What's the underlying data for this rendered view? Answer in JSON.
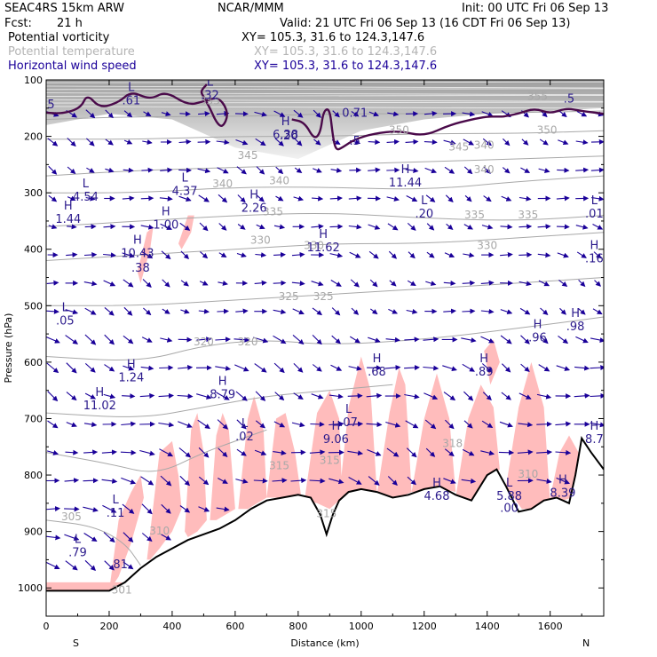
{
  "header": {
    "model": "SEAC4RS 15km ARW",
    "org": "NCAR/MMM",
    "init": "Init: 00 UTC Fri 06 Sep 13",
    "fcst_label": "Fcst:",
    "fcst_value": "21 h",
    "valid": "Valid: 21 UTC Fri 06 Sep 13 (16 CDT Fri 06 Sep 13)",
    "fields": [
      {
        "name": "Potential vorticity",
        "xy": "XY= 105.3, 31.6 to 124.3,147.6",
        "color": "#000000"
      },
      {
        "name": "Potential temperature",
        "xy": "XY= 105.3, 31.6 to 124.3,147.6",
        "color": "#b4b4b4"
      },
      {
        "name": "Horizontal wind speed",
        "xy": "XY= 105.3, 31.6 to 124.3,147.6",
        "color": "#1a0099"
      }
    ]
  },
  "chart_data": {
    "type": "cross-section",
    "xlabel": "Distance (km)",
    "ylabel": "Pressure (hPa)",
    "xlim": [
      0,
      1770
    ],
    "ylim": [
      1050,
      100
    ],
    "x_ticks": [
      "0",
      "200",
      "400",
      "600",
      "800",
      "1000",
      "1200",
      "1400",
      "1600"
    ],
    "y_ticks": [
      "100",
      "200",
      "300",
      "400",
      "500",
      "600",
      "700",
      "800",
      "900",
      "1000"
    ],
    "x_endpoints": {
      "left": "S",
      "right": "N"
    },
    "colors": {
      "pv_fill": "#ffbcbc",
      "pv_contour": "#4a0a4a",
      "theta": "#a8a8a8",
      "wind": "#1a0099",
      "terrain": "#000000"
    },
    "terrain": {
      "x": [
        0,
        200,
        250,
        300,
        350,
        400,
        450,
        500,
        550,
        600,
        650,
        700,
        750,
        800,
        840,
        870,
        890,
        910,
        930,
        960,
        1000,
        1050,
        1100,
        1150,
        1200,
        1250,
        1300,
        1350,
        1400,
        1430,
        1460,
        1500,
        1540,
        1580,
        1620,
        1660,
        1680,
        1700,
        1730,
        1770
      ],
      "p": [
        1005,
        1005,
        990,
        965,
        945,
        930,
        915,
        905,
        895,
        880,
        860,
        845,
        840,
        835,
        840,
        870,
        905,
        870,
        845,
        830,
        825,
        830,
        840,
        835,
        825,
        820,
        835,
        845,
        800,
        790,
        820,
        865,
        860,
        845,
        840,
        850,
        800,
        735,
        760,
        790
      ]
    },
    "theta_contours": [
      {
        "label": "305",
        "x": [
          0,
          150,
          250,
          300
        ],
        "p": [
          880,
          890,
          920,
          960
        ]
      },
      {
        "label": "310",
        "x": [
          0,
          200,
          350,
          500,
          600,
          700
        ],
        "p": [
          760,
          780,
          800,
          760,
          740,
          720
        ]
      },
      {
        "label": "315",
        "x": [
          0,
          300,
          500,
          700,
          900,
          1100
        ],
        "p": [
          690,
          700,
          680,
          660,
          650,
          640
        ]
      },
      {
        "label": "320",
        "x": [
          0,
          300,
          500,
          700,
          900,
          1200,
          1500,
          1770
        ],
        "p": [
          590,
          600,
          570,
          560,
          570,
          560,
          540,
          520
        ]
      },
      {
        "label": "325",
        "x": [
          0,
          300,
          600,
          900,
          1200,
          1500,
          1770
        ],
        "p": [
          500,
          500,
          490,
          480,
          470,
          460,
          450
        ]
      },
      {
        "label": "330",
        "x": [
          0,
          300,
          600,
          900,
          1200,
          1500,
          1770
        ],
        "p": [
          420,
          410,
          400,
          390,
          390,
          380,
          370
        ]
      },
      {
        "label": "335",
        "x": [
          0,
          300,
          600,
          900,
          1200,
          1500,
          1770
        ],
        "p": [
          360,
          350,
          340,
          335,
          345,
          350,
          340
        ]
      },
      {
        "label": "340",
        "x": [
          0,
          300,
          600,
          900,
          1200,
          1500,
          1770
        ],
        "p": [
          300,
          300,
          290,
          290,
          295,
          280,
          270
        ]
      },
      {
        "label": "345",
        "x": [
          0,
          300,
          600,
          900,
          1200,
          1500,
          1770
        ],
        "p": [
          270,
          260,
          255,
          250,
          245,
          240,
          235
        ]
      },
      {
        "label": "350",
        "x": [
          0,
          300,
          600,
          900,
          1200,
          1500,
          1770
        ],
        "p": [
          205,
          205,
          200,
          200,
          195,
          195,
          190
        ]
      },
      {
        "label": "355",
        "x": [
          0,
          300,
          600,
          900,
          1200,
          1500,
          1770
        ],
        "p": [
          170,
          165,
          165,
          160,
          160,
          158,
          155
        ]
      }
    ],
    "theta_labels": [
      {
        "text": "305",
        "x": 80,
        "p": 880
      },
      {
        "text": "310",
        "x": 360,
        "p": 905
      },
      {
        "text": "310",
        "x": 1530,
        "p": 805
      },
      {
        "text": "315",
        "x": 740,
        "p": 790
      },
      {
        "text": "315",
        "x": 900,
        "p": 780
      },
      {
        "text": "315",
        "x": 890,
        "p": 875
      },
      {
        "text": "318",
        "x": 1290,
        "p": 750
      },
      {
        "text": "301",
        "x": 240,
        "p": 1010
      },
      {
        "text": "320",
        "x": 500,
        "p": 570
      },
      {
        "text": "320",
        "x": 640,
        "p": 570
      },
      {
        "text": "325",
        "x": 770,
        "p": 490
      },
      {
        "text": "325",
        "x": 880,
        "p": 490
      },
      {
        "text": "330",
        "x": 680,
        "p": 390
      },
      {
        "text": "330",
        "x": 850,
        "p": 400
      },
      {
        "text": "330",
        "x": 1400,
        "p": 400
      },
      {
        "text": "335",
        "x": 720,
        "p": 340
      },
      {
        "text": "335",
        "x": 1360,
        "p": 345
      },
      {
        "text": "335",
        "x": 1530,
        "p": 345
      },
      {
        "text": "340",
        "x": 560,
        "p": 290
      },
      {
        "text": "340",
        "x": 740,
        "p": 285
      },
      {
        "text": "340",
        "x": 1390,
        "p": 265
      },
      {
        "text": "345",
        "x": 640,
        "p": 240
      },
      {
        "text": "345",
        "x": 1310,
        "p": 225
      },
      {
        "text": "350",
        "x": 1120,
        "p": 195
      },
      {
        "text": "350",
        "x": 1590,
        "p": 195
      },
      {
        "text": "355",
        "x": 520,
        "p": 143
      },
      {
        "text": "355",
        "x": 1560,
        "p": 135
      },
      {
        "text": "340",
        "x": 1390,
        "p": 222
      }
    ],
    "pv_fill_regions": [
      {
        "x": [
          0,
          240,
          240,
          0
        ],
        "p": [
          990,
          990,
          1005,
          1005
        ]
      },
      {
        "x": [
          200,
          230,
          270,
          300,
          310,
          270,
          230,
          200
        ],
        "p": [
          1005,
          880,
          830,
          800,
          840,
          920,
          980,
          1005
        ]
      },
      {
        "x": [
          320,
          360,
          400,
          420,
          430,
          400,
          360,
          330
        ],
        "p": [
          950,
          760,
          740,
          800,
          860,
          900,
          930,
          950
        ]
      },
      {
        "x": [
          440,
          460,
          480,
          500,
          510,
          480,
          450
        ],
        "p": [
          900,
          720,
          690,
          760,
          880,
          900,
          910
        ]
      },
      {
        "x": [
          520,
          540,
          560,
          580,
          600,
          570,
          540
        ],
        "p": [
          880,
          730,
          690,
          720,
          860,
          870,
          880
        ]
      },
      {
        "x": [
          610,
          640,
          660,
          690,
          700,
          670,
          640
        ],
        "p": [
          860,
          700,
          660,
          720,
          840,
          850,
          860
        ]
      },
      {
        "x": [
          700,
          730,
          760,
          790,
          810,
          780,
          740
        ],
        "p": [
          840,
          700,
          690,
          760,
          840,
          840,
          840
        ]
      },
      {
        "x": [
          820,
          860,
          900,
          930,
          940,
          900,
          860
        ],
        "p": [
          845,
          690,
          650,
          700,
          840,
          860,
          850
        ]
      },
      {
        "x": [
          930,
          960,
          1000,
          1030,
          1050,
          1010,
          960
        ],
        "p": [
          840,
          680,
          590,
          650,
          830,
          830,
          840
        ]
      },
      {
        "x": [
          1050,
          1090,
          1120,
          1140,
          1160,
          1120,
          1080
        ],
        "p": [
          835,
          690,
          610,
          640,
          830,
          840,
          840
        ]
      },
      {
        "x": [
          1160,
          1200,
          1240,
          1280,
          1300,
          1260,
          1200
        ],
        "p": [
          830,
          700,
          620,
          700,
          830,
          825,
          830
        ]
      },
      {
        "x": [
          1300,
          1340,
          1380,
          1420,
          1440,
          1410,
          1350
        ],
        "p": [
          840,
          700,
          640,
          680,
          790,
          800,
          845
        ]
      },
      {
        "x": [
          1460,
          1500,
          1540,
          1580,
          1600,
          1570,
          1510
        ],
        "p": [
          820,
          680,
          600,
          680,
          850,
          860,
          860
        ]
      },
      {
        "x": [
          1600,
          1630,
          1660,
          1690,
          1700,
          1670,
          1640
        ],
        "p": [
          840,
          760,
          730,
          760,
          800,
          840,
          845
        ]
      },
      {
        "x": [
          1390,
          1420,
          1440,
          1410
        ],
        "p": [
          580,
          560,
          600,
          640
        ]
      },
      {
        "x": [
          290,
          320,
          340,
          330,
          300
        ],
        "p": [
          440,
          370,
          360,
          400,
          460
        ]
      },
      {
        "x": [
          420,
          450,
          470,
          460,
          430
        ],
        "p": [
          390,
          340,
          340,
          370,
          400
        ]
      }
    ],
    "pv_contour_lines": [
      {
        "x": [
          0,
          50,
          110,
          130,
          170,
          230,
          270,
          330,
          380,
          450,
          500,
          550,
          580,
          560,
          540,
          520,
          500,
          490,
          510
        ],
        "p": [
          158,
          160,
          150,
          125,
          150,
          140,
          120,
          135,
          120,
          145,
          138,
          130,
          160,
          185,
          175,
          150,
          130,
          120,
          108
        ]
      },
      {
        "x": [
          780,
          820,
          850,
          870,
          880,
          900,
          910,
          920,
          940,
          980,
          1040,
          1120,
          1200,
          1280,
          1350,
          1400,
          1430,
          1450
        ],
        "p": [
          170,
          175,
          205,
          195,
          155,
          150,
          200,
          225,
          220,
          205,
          195,
          190,
          200,
          180,
          170,
          165,
          165,
          165
        ]
      },
      {
        "x": [
          1450,
          1500,
          1550,
          1600,
          1650,
          1700,
          1770
        ],
        "p": [
          165,
          160,
          150,
          160,
          150,
          155,
          160
        ]
      }
    ],
    "stratosphere_shading": {
      "x": [
        0,
        200,
        400,
        600,
        800,
        1000,
        1200,
        1400,
        1600,
        1770
      ],
      "p_bottom": [
        180,
        160,
        170,
        220,
        240,
        190,
        170,
        160,
        155,
        150
      ],
      "p_top": [
        100,
        100,
        100,
        100,
        100,
        100,
        100,
        100,
        100,
        100
      ]
    },
    "highs_lows": [
      {
        "sym": "H",
        "x": 70,
        "p": 330,
        "val": "1.44"
      },
      {
        "sym": "L",
        "x": 125,
        "p": 290,
        "val": "4.54"
      },
      {
        "sym": "L",
        "x": 270,
        "p": 120,
        "val": ".61"
      },
      {
        "sym": "",
        "x": 10,
        "p": 150,
        "val": ".5"
      },
      {
        "sym": "L",
        "x": 440,
        "p": 280,
        "val": "4.37"
      },
      {
        "sym": "H",
        "x": 380,
        "p": 340,
        "val": "1.00"
      },
      {
        "sym": "L",
        "x": 520,
        "p": 110,
        "val": ".32"
      },
      {
        "sym": "H",
        "x": 760,
        "p": 180,
        "val": "6.38"
      },
      {
        "sym": "",
        "x": 770,
        "p": 205,
        "val": ".20"
      },
      {
        "sym": "H",
        "x": 660,
        "p": 310,
        "val": "2.26"
      },
      {
        "sym": "H",
        "x": 290,
        "p": 390,
        "val": "10.43"
      },
      {
        "sym": "",
        "x": 300,
        "p": 440,
        "val": ".38"
      },
      {
        "sym": "H",
        "x": 880,
        "p": 380,
        "val": "11.62"
      },
      {
        "sym": "",
        "x": 980,
        "p": 165,
        "val": "0.71"
      },
      {
        "sym": "",
        "x": 980,
        "p": 215,
        "val": ".5"
      },
      {
        "sym": "H",
        "x": 1140,
        "p": 265,
        "val": "11.44"
      },
      {
        "sym": "L",
        "x": 1200,
        "p": 320,
        "val": ".20"
      },
      {
        "sym": "",
        "x": 1660,
        "p": 140,
        "val": ".5"
      },
      {
        "sym": "L",
        "x": 1740,
        "p": 320,
        "val": ".01"
      },
      {
        "sym": "H",
        "x": 1740,
        "p": 400,
        "val": ".16"
      },
      {
        "sym": "L",
        "x": 60,
        "p": 510,
        "val": ".05"
      },
      {
        "sym": "H",
        "x": 270,
        "p": 610,
        "val": "1.24"
      },
      {
        "sym": "H",
        "x": 170,
        "p": 660,
        "val": "11.02"
      },
      {
        "sym": "H",
        "x": 560,
        "p": 640,
        "val": "8.79"
      },
      {
        "sym": "L",
        "x": 630,
        "p": 715,
        "val": ".02"
      },
      {
        "sym": "H",
        "x": 1050,
        "p": 600,
        "val": ".68"
      },
      {
        "sym": "L",
        "x": 960,
        "p": 690,
        "val": ".07"
      },
      {
        "sym": "H",
        "x": 920,
        "p": 720,
        "val": "9.06"
      },
      {
        "sym": "H",
        "x": 1390,
        "p": 600,
        "val": ".89"
      },
      {
        "sym": "H",
        "x": 1560,
        "p": 540,
        "val": ".96"
      },
      {
        "sym": "H",
        "x": 1680,
        "p": 520,
        "val": ".98"
      },
      {
        "sym": "H",
        "x": 1240,
        "p": 820,
        "val": "4.68"
      },
      {
        "sym": "L",
        "x": 1470,
        "p": 820,
        "val": "5.88"
      },
      {
        "sym": "",
        "x": 1470,
        "p": 865,
        "val": ".00"
      },
      {
        "sym": "H",
        "x": 1640,
        "p": 815,
        "val": "8.39"
      },
      {
        "sym": "H",
        "x": 1740,
        "p": 720,
        "val": "8.7"
      },
      {
        "sym": "L",
        "x": 220,
        "p": 850,
        "val": ".11"
      },
      {
        "sym": "L",
        "x": 100,
        "p": 920,
        "val": ".79"
      },
      {
        "sym": "",
        "x": 230,
        "p": 965,
        "val": ".81"
      }
    ],
    "wind_field": {
      "x": [
        20,
        80,
        140,
        200,
        260,
        320,
        380,
        440,
        500,
        560,
        620,
        680,
        740,
        800,
        860,
        920,
        980,
        1040,
        1100,
        1160,
        1220,
        1280,
        1340,
        1400,
        1460,
        1520,
        1580,
        1640,
        1700,
        1750
      ],
      "p": [
        160,
        210,
        260,
        310,
        360,
        410,
        460,
        510,
        560,
        610,
        660,
        710,
        760,
        810,
        860,
        910,
        960
      ],
      "note": "arrows drawn below terrain are omitted"
    }
  }
}
